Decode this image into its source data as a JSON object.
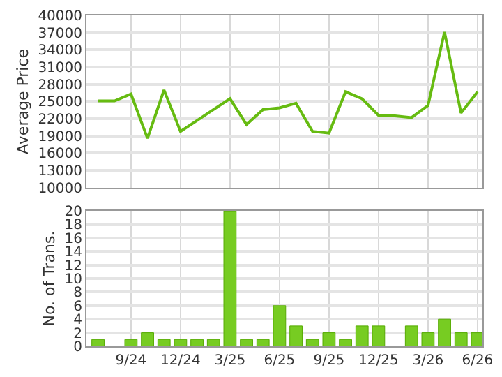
{
  "chart_data": [
    {
      "type": "line",
      "ylabel": "Average Price",
      "categories": [
        null,
        null,
        null,
        null,
        null,
        null,
        null,
        null,
        null,
        null,
        null,
        null,
        null,
        null,
        null,
        null,
        null,
        null,
        null,
        null,
        null,
        null,
        null,
        null
      ],
      "series": [
        {
          "color": "#66bb11",
          "values": [
            25100,
            25100,
            26300,
            18600,
            27000,
            19800,
            21700,
            23600,
            25500,
            21000,
            23600,
            23900,
            24700,
            19800,
            19500,
            26700,
            25500,
            22600,
            22500,
            22200,
            24300,
            37100,
            23000,
            26700
          ]
        }
      ],
      "ylim": [
        10000,
        40000
      ],
      "yticks": [
        10000,
        13000,
        16000,
        19000,
        22000,
        25000,
        28000,
        31000,
        34000,
        37000,
        40000
      ],
      "grid": true,
      "tick_labels": "y",
      "marker": "none",
      "line_style": "solid"
    },
    {
      "type": "bar",
      "ylabel": "No. of Trans.",
      "categories": [
        null,
        null,
        "9/24",
        null,
        null,
        "12/24",
        null,
        null,
        "3/25",
        null,
        null,
        "6/25",
        null,
        null,
        "9/25",
        null,
        null,
        "12/25",
        null,
        null,
        "3/26",
        null,
        null,
        "6/26"
      ],
      "series": [
        {
          "color": "#77cc22",
          "values": [
            1,
            null,
            1,
            2,
            1,
            1,
            1,
            1,
            20,
            1,
            1,
            6,
            3,
            1,
            2,
            1,
            3,
            3,
            null,
            3,
            2,
            4,
            2,
            2
          ]
        }
      ],
      "ylim": [
        0,
        20
      ],
      "yticks": [
        0,
        2,
        4,
        6,
        8,
        10,
        12,
        14,
        16,
        18,
        20
      ],
      "grid": true
    }
  ]
}
